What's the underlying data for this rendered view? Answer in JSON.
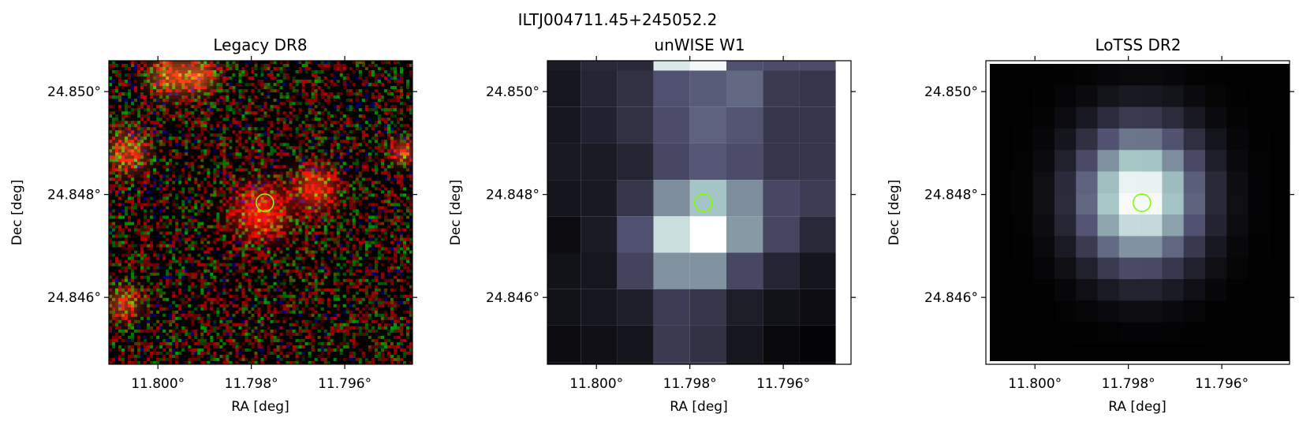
{
  "figure": {
    "suptitle": "ILTJ004711.45+245052.2"
  },
  "colors": {
    "marker": "#7fff00",
    "axes": "#000000",
    "background": "#ffffff"
  },
  "chart_data": [
    {
      "type": "heatmap",
      "title": "Legacy DR8",
      "xlabel": "RA [deg]",
      "ylabel": "Dec [deg]",
      "x_ticks": [
        11.8,
        11.798,
        11.796
      ],
      "x_tick_labels": [
        "11.800°",
        "11.798°",
        "11.796°"
      ],
      "y_ticks": [
        24.85,
        24.848,
        24.846
      ],
      "y_tick_labels": [
        "24.850°",
        "24.848°",
        "24.846°"
      ],
      "xlim": [
        11.80105,
        11.79455
      ],
      "ylim": [
        24.8447,
        24.8506
      ],
      "colormap": "rgb composite",
      "grid": false,
      "source": {
        "ra": 11.79771,
        "dec": 24.84784,
        "marker": "circle"
      }
    },
    {
      "type": "heatmap",
      "title": "unWISE W1",
      "xlabel": "RA [deg]",
      "ylabel": "Dec [deg]",
      "x_ticks": [
        11.8,
        11.798,
        11.796
      ],
      "x_tick_labels": [
        "11.800°",
        "11.798°",
        "11.796°"
      ],
      "y_ticks": [
        24.85,
        24.848,
        24.846
      ],
      "y_tick_labels": [
        "24.850°",
        "24.848°",
        "24.846°"
      ],
      "xlim": [
        11.80105,
        11.79455
      ],
      "ylim": [
        24.8447,
        24.8506
      ],
      "colormap": "bone",
      "grid": false,
      "values": [
        [
          0.1,
          0.16,
          0.22,
          0.36,
          0.4,
          0.44,
          0.26,
          0.24
        ],
        [
          0.1,
          0.15,
          0.22,
          0.34,
          0.42,
          0.37,
          0.24,
          0.24
        ],
        [
          0.11,
          0.12,
          0.16,
          0.32,
          0.38,
          0.34,
          0.24,
          0.24
        ],
        [
          0.09,
          0.11,
          0.24,
          0.56,
          0.74,
          0.56,
          0.32,
          0.27
        ],
        [
          0.05,
          0.12,
          0.36,
          0.85,
          1.0,
          0.6,
          0.31,
          0.18
        ],
        [
          0.08,
          0.1,
          0.3,
          0.58,
          0.58,
          0.32,
          0.16,
          0.09
        ],
        [
          0.08,
          0.1,
          0.14,
          0.27,
          0.24,
          0.13,
          0.08,
          0.06
        ],
        [
          0.05,
          0.07,
          0.09,
          0.26,
          0.22,
          0.1,
          0.04,
          0.02
        ],
        [
          0.06,
          0.05,
          0.08,
          0.28,
          0.28,
          0.06,
          0.03,
          0.02
        ]
      ],
      "top_row_values": [
        0.12,
        0.18,
        0.18,
        0.9,
        0.97,
        0.36,
        0.34,
        0.34
      ],
      "source": {
        "ra": 11.79771,
        "dec": 24.84784,
        "marker": "circle"
      }
    },
    {
      "type": "heatmap",
      "title": "LoTSS DR2",
      "xlabel": "RA [deg]",
      "ylabel": "Dec [deg]",
      "x_ticks": [
        11.8,
        11.798,
        11.796
      ],
      "x_tick_labels": [
        "11.800°",
        "11.798°",
        "11.796°"
      ],
      "y_ticks": [
        24.85,
        24.848,
        24.846
      ],
      "y_tick_labels": [
        "24.850°",
        "24.848°",
        "24.846°"
      ],
      "xlim": [
        11.80105,
        11.79455
      ],
      "ylim": [
        24.8447,
        24.8506
      ],
      "colormap": "bone",
      "grid": false,
      "peak": {
        "ra": 11.79775,
        "dec": 24.84795
      },
      "source": {
        "ra": 11.79771,
        "dec": 24.84784,
        "marker": "circle"
      }
    }
  ]
}
